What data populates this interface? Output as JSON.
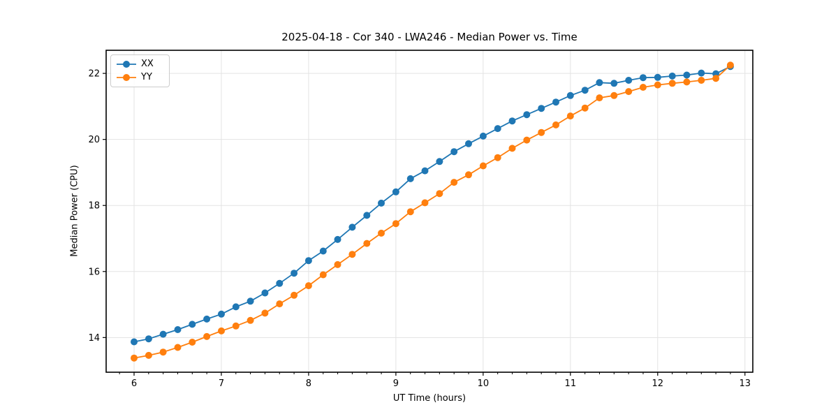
{
  "chart_data": {
    "type": "line",
    "title": "2025-04-18 - Cor 340 - LWA246 - Median Power vs. Time",
    "xlabel": "UT Time (hours)",
    "ylabel": "Median Power (CPU)",
    "xlim": [
      5.68,
      13.09
    ],
    "ylim": [
      12.95,
      22.7
    ],
    "x_major_ticks": [
      6,
      7,
      8,
      9,
      10,
      11,
      12,
      13
    ],
    "x_minor_divisions_per_major": 6,
    "y_major_ticks": [
      14,
      16,
      18,
      20,
      22
    ],
    "grid": true,
    "grid_color": "#e3e3e3",
    "spine_color": "#000000",
    "legend_position": "upper-left",
    "x": [
      6.0,
      6.167,
      6.333,
      6.5,
      6.667,
      6.833,
      7.0,
      7.167,
      7.333,
      7.5,
      7.667,
      7.833,
      8.0,
      8.167,
      8.333,
      8.5,
      8.667,
      8.833,
      9.0,
      9.167,
      9.333,
      9.5,
      9.667,
      9.833,
      10.0,
      10.167,
      10.333,
      10.5,
      10.667,
      10.833,
      11.0,
      11.167,
      11.333,
      11.5,
      11.667,
      11.833,
      12.0,
      12.167,
      12.333,
      12.5,
      12.667,
      12.833
    ],
    "series": [
      {
        "name": "XX",
        "color": "#1f77b4",
        "values": [
          13.87,
          13.96,
          14.1,
          14.24,
          14.4,
          14.56,
          14.71,
          14.93,
          15.1,
          15.35,
          15.64,
          15.95,
          16.33,
          16.62,
          16.97,
          17.34,
          17.7,
          18.07,
          18.41,
          18.81,
          19.05,
          19.33,
          19.63,
          19.87,
          20.1,
          20.33,
          20.56,
          20.75,
          20.94,
          21.13,
          21.33,
          21.49,
          21.72,
          21.7,
          21.79,
          21.87,
          21.88,
          21.92,
          21.95,
          22.01,
          21.99,
          22.21
        ]
      },
      {
        "name": "YY",
        "color": "#ff7f0e",
        "values": [
          13.38,
          13.46,
          13.56,
          13.7,
          13.86,
          14.03,
          14.2,
          14.35,
          14.52,
          14.74,
          15.02,
          15.28,
          15.57,
          15.9,
          16.21,
          16.52,
          16.85,
          17.16,
          17.45,
          17.81,
          18.08,
          18.36,
          18.7,
          18.93,
          19.2,
          19.45,
          19.73,
          19.98,
          20.21,
          20.44,
          20.71,
          20.95,
          21.26,
          21.33,
          21.45,
          21.58,
          21.65,
          21.7,
          21.74,
          21.79,
          21.85,
          22.25
        ]
      }
    ],
    "x_tick_labels": [
      "6",
      "7",
      "8",
      "9",
      "10",
      "11",
      "12",
      "13"
    ],
    "y_tick_labels": [
      "14",
      "16",
      "18",
      "20",
      "22"
    ]
  }
}
